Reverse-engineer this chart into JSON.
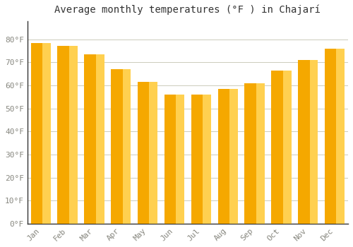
{
  "title": "Average monthly temperatures (°F ) in Chajarí",
  "months": [
    "Jan",
    "Feb",
    "Mar",
    "Apr",
    "May",
    "Jun",
    "Jul",
    "Aug",
    "Sep",
    "Oct",
    "Nov",
    "Dec"
  ],
  "values": [
    78.5,
    77.0,
    73.5,
    67.0,
    61.5,
    56.0,
    56.0,
    58.5,
    61.0,
    66.5,
    71.0,
    76.0
  ],
  "bar_color_left": "#F5A800",
  "bar_color_right": "#FFD050",
  "background_color": "#FFFFFF",
  "grid_color": "#CCCCBB",
  "ylim": [
    0,
    88
  ],
  "yticks": [
    0,
    10,
    20,
    30,
    40,
    50,
    60,
    70,
    80
  ],
  "ytick_labels": [
    "0°F",
    "10°F",
    "20°F",
    "30°F",
    "40°F",
    "50°F",
    "60°F",
    "70°F",
    "80°F"
  ],
  "title_fontsize": 10,
  "tick_fontsize": 8,
  "font_color": "#888880",
  "title_color": "#333333",
  "bar_width": 0.75,
  "left_spine_color": "#333333"
}
